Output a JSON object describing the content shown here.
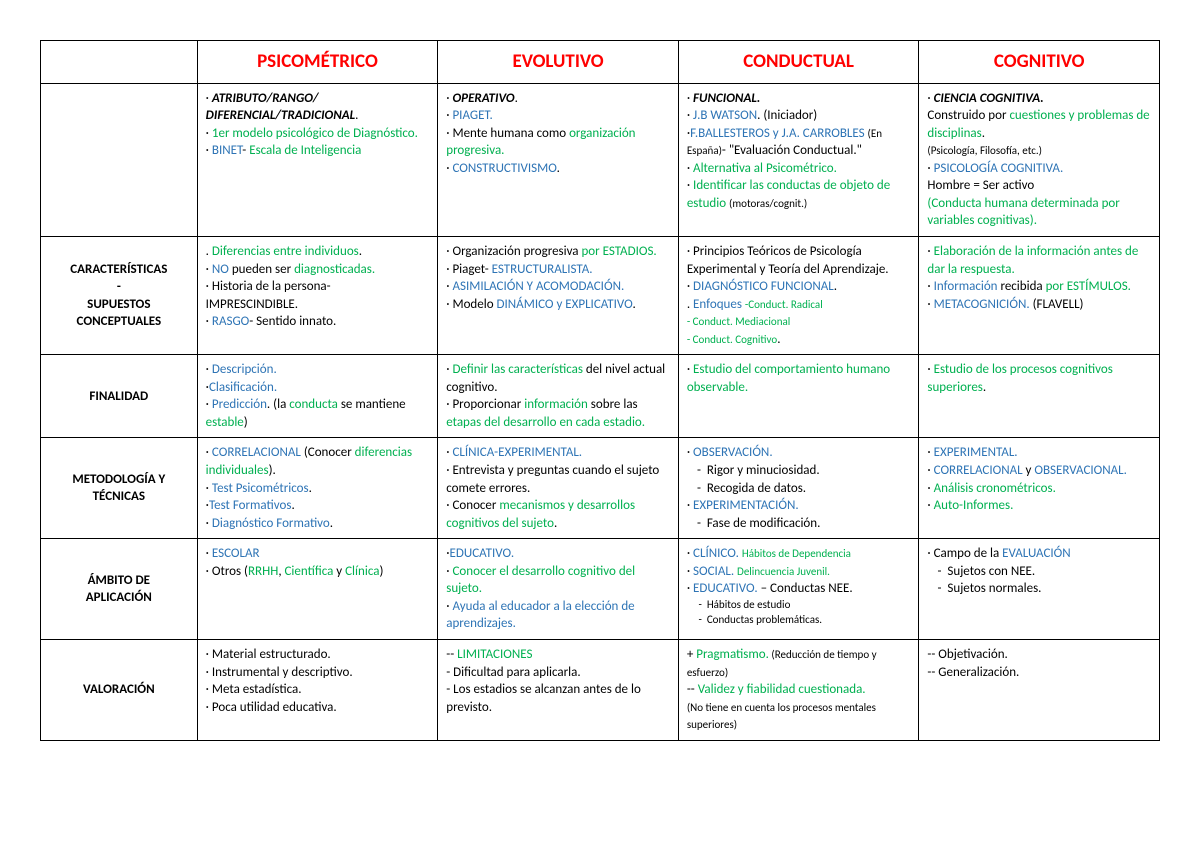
{
  "colors": {
    "header_red": "#ff0000",
    "blue": "#2e74b5",
    "green": "#00b050",
    "black": "#000000",
    "border": "#000000",
    "background": "#ffffff"
  },
  "fontsize": {
    "header": 19,
    "body": 13,
    "small": 11
  },
  "columns": [
    "PSICOMÉTRICO",
    "EVOLUTIVO",
    "CONDUCTUAL",
    "COGNITIVO"
  ],
  "row_labels": {
    "intro": "",
    "caracteristicas_l1": "CARACTERÍSTICAS",
    "caracteristicas_l2": "-",
    "caracteristicas_l3": "SUPUESTOS",
    "caracteristicas_l4": "CONCEPTUALES",
    "finalidad": "FINALIDAD",
    "metodologia_l1": "METODOLOGÍA Y",
    "metodologia_l2": "TÉCNICAS",
    "ambito_l1": "ÁMBITO DE",
    "ambito_l2": "APLICACIÓN",
    "valoracion": "VALORACIÓN"
  },
  "intro": {
    "psico": {
      "t1": "· ",
      "t2": "ATRIBUTO/RANGO/ DIFERENCIAL/TRADICIONAL",
      "t3": ".",
      "t4": "· ",
      "t5": "1er modelo psicológico de Diagnóstico.",
      "t6": "· ",
      "t7": "BINET",
      "t8": "- ",
      "t9": "Escala de Inteligencia"
    },
    "evo": {
      "t1": "· ",
      "t2": "OPERATIVO",
      "t3": ".",
      "t4": "· ",
      "t5": "PIAGET.",
      "t6": "· Mente humana como ",
      "t7": "organización progresiva.",
      "t8": "· ",
      "t9": "CONSTRUCTIVISMO",
      "t10": "."
    },
    "cond": {
      "t1": "· ",
      "t2": "FUNCIONAL.",
      "t3": "· ",
      "t4": "J.B WATSON",
      "t5": ". (Iniciador)",
      "t6": "·",
      "t7": "F.BALLESTEROS y J.A. CARROBLES",
      "t8": "(En España)",
      "t9": "- \"Evaluación Conductual.\"",
      "t10": "· ",
      "t11": "Alternativa al Psicométrico.",
      "t12": "· ",
      "t13": "Identificar las conductas de objeto de estudio ",
      "t14": "(motoras/cognit.)"
    },
    "cog": {
      "t1": "· ",
      "t2": "CIENCIA COGNITIVA.",
      "t3": "Construido por ",
      "t4": "cuestiones y problemas de disciplinas",
      "t5": ".",
      "t6": "(Psicología, Filosofía, etc.)",
      "t7": "· ",
      "t8": "PSICOLOGÍA COGNITIVA.",
      "t9": "Hombre = Ser activo",
      "t10": "(Conducta humana determinada por variables cognitivas).",
      "t10b": ""
    }
  },
  "caract": {
    "psico": {
      "t1": ". ",
      "t2": "Diferencias entre individuos",
      "t3": ".",
      "t4": "· ",
      "t5": "NO",
      "t6": " pueden ser ",
      "t7": "diagnosticadas.",
      "t8": "· Historia de la persona- ",
      "t9": "IMPRESCINDIBLE.",
      "t10": "· ",
      "t11": "RASGO",
      "t12": "- Sentido innato."
    },
    "evo": {
      "t1": "· Organización progresiva ",
      "t2": "por ESTADIOS.",
      "t3": "· Piaget- ",
      "t4": "ESTRUCTURALISTA.",
      "t5": "· ",
      "t6": "ASIMILACIÓN Y ACOMODACIÓN.",
      "t7": "· Modelo ",
      "t8": "DINÁMICO y EXPLICATIVO",
      "t9": "."
    },
    "cond": {
      "t1": "· Principios Teóricos de Psicología Experimental y Teoría del Aprendizaje.",
      "t2": "· ",
      "t3": "DIAGNÓSTICO FUNCIONAL",
      "t4": ".",
      "t5": ". ",
      "t6": "Enfoques ",
      "t7": "-Conduct. Radical",
      "t8": "- Conduct. Mediacional",
      "t9": "- Conduct. Cognitivo",
      "t10": "."
    },
    "cog": {
      "t1": "· ",
      "t2": "Elaboración de la información antes de dar la respuesta.",
      "t3": "· ",
      "t4": "Información",
      "t5": " recibida ",
      "t6": "por ESTÍMULOS.",
      "t7": "· ",
      "t8": "METACOGNICIÓN.",
      "t9": " (FLAVELL)"
    }
  },
  "finalidad": {
    "psico": {
      "t1": "· ",
      "t2": "Descripción.",
      "t3": "·",
      "t4": "Clasificación.",
      "t5": "· ",
      "t6": "Predicción",
      "t7": ". (la ",
      "t8": "conducta",
      "t9": " se mantiene ",
      "t10": "estable",
      "t11": ")"
    },
    "evo": {
      "t1": "· ",
      "t2": "Definir las características",
      "t3": " del nivel actual cognitivo.",
      "t4": "· Proporcionar ",
      "t5": "información",
      "t6": " sobre las ",
      "t7": "etapas del desarrollo en cada estadio.",
      "t7b": ""
    },
    "cond": {
      "t1": "· ",
      "t2": "Estudio del comportamiento humano observable."
    },
    "cog": {
      "t1": "· ",
      "t2": "Estudio de los procesos cognitivos superiores",
      "t3": "."
    }
  },
  "metod": {
    "psico": {
      "t1": "· ",
      "t2": "CORRELACIONAL",
      "t3": " (Conocer ",
      "t4": "diferencias individuales",
      "t5": ").",
      "t6": "· ",
      "t7": "Test Psicométricos",
      "t8": ".",
      "t9": "·",
      "t10": "Test Formativos",
      "t11": ".",
      "t12": "· ",
      "t13": "Diagnóstico Formativo",
      "t14": "."
    },
    "evo": {
      "t1": "· ",
      "t2": "CLÍNICA-EXPERIMENTAL.",
      "t3": "· Entrevista y preguntas cuando el sujeto comete errores.",
      "t4": "· Conocer ",
      "t5": "mecanismos y desarrollos cognitivos del sujeto",
      "t6": "."
    },
    "cond": {
      "t1": "· ",
      "t2": "OBSERVACIÓN.",
      "d1": "Rigor y minuciosidad.",
      "d2": "Recogida de datos.",
      "t3": "· ",
      "t4": "EXPERIMENTACIÓN.",
      "d3": "Fase de modificación."
    },
    "cog": {
      "t1": "· ",
      "t2": "EXPERIMENTAL.",
      "t3": "· ",
      "t4": "CORRELACIONAL",
      "t5": " y ",
      "t6": "OBSERVACIONAL.",
      "t7": "· ",
      "t8": "Análisis cronométricos.",
      "t9": "· ",
      "t10": "Auto-Informes."
    }
  },
  "ambito": {
    "psico": {
      "t1": "· ",
      "t2": "ESCOLAR",
      "t3": "· Otros (",
      "t4": "RRHH",
      "t5": ", ",
      "t6": "Científica",
      "t7": " y ",
      "t8": "Clínica",
      "t9": ")"
    },
    "evo": {
      "t1": "·",
      "t2": "EDUCATIVO.",
      "t3": "· ",
      "t4": "Conocer el desarrollo cognitivo del sujeto.",
      "t5": "· ",
      "t6": "Ayuda al educador a la elección de aprendizajes."
    },
    "cond": {
      "t1": "· ",
      "t2": "CLÍNICO. ",
      "t3": "Hábitos de Dependencia",
      "t4": "· ",
      "t5": "SOCIAL. ",
      "t6": "Delincuencia Juvenil.",
      "t7": "· ",
      "t8": "EDUCATIVO.",
      "t9": " – Conductas NEE.",
      "d1": "Hábitos de estudio",
      "d2": "Conductas problemáticas."
    },
    "cog": {
      "t1": "· Campo de la ",
      "t2": "EVALUACIÓN",
      "d1": "Sujetos con NEE.",
      "d2": "Sujetos normales."
    }
  },
  "valor": {
    "psico": {
      "t1": "· Material estructurado.",
      "t2": "· Instrumental y descriptivo.",
      "t3": "· Meta estadística.",
      "t4": "· Poca utilidad educativa."
    },
    "evo": {
      "t1": "-- ",
      "t2": "LIMITACIONES",
      "t3": "- Dificultad para aplicarla.",
      "t4": "- Los estadios se alcanzan antes de lo previsto."
    },
    "cond": {
      "t1": "+ ",
      "t2": "Pragmatismo.",
      "t3": " (Reducción de tiempo y esfuerzo)",
      "t4": "-- ",
      "t5": "Validez y fiabilidad cuestionada.",
      "t6": "(No tiene en cuenta los procesos mentales superiores)"
    },
    "cog": {
      "t1": "-- Objetivación.",
      "t2": "-- Generalización."
    }
  }
}
